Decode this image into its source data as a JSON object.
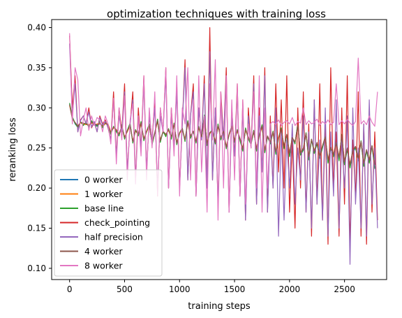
{
  "chart_data": {
    "type": "line",
    "title": "optimization techniques with training loss",
    "xlabel": "training steps",
    "ylabel": "reranking loss",
    "xlim": [
      -163,
      2883
    ],
    "ylim": [
      0.086,
      0.41
    ],
    "xticks": [
      0,
      500,
      1000,
      1500,
      2000,
      2500
    ],
    "yticks": [
      0.1,
      0.15,
      0.2,
      0.25,
      0.3,
      0.35,
      0.4
    ],
    "ytick_labels": [
      "0.10",
      "0.15",
      "0.20",
      "0.25",
      "0.30",
      "0.35",
      "0.40"
    ],
    "grid": false,
    "legend_position": "lower-left",
    "x_step": 25,
    "series": [
      {
        "name": "0 worker",
        "color": "#1f77b4",
        "values": [
          0.305,
          0.288,
          0.28,
          0.276,
          0.282,
          0.279,
          0.281,
          0.277,
          0.283,
          0.28,
          0.278,
          0.282,
          0.276,
          0.281,
          0.279,
          0.268,
          0.276,
          0.271,
          0.266,
          0.278,
          0.262,
          0.271,
          0.28,
          0.257,
          0.272,
          0.266,
          0.282,
          0.26,
          0.27,
          0.279,
          0.255,
          0.268,
          0.285,
          0.258,
          0.27,
          0.265,
          0.273,
          0.262,
          0.28,
          0.255,
          0.268,
          0.274,
          0.259,
          0.283,
          0.263,
          0.27,
          0.257,
          0.276,
          0.262,
          0.29,
          0.254,
          0.268,
          0.272,
          0.256,
          0.279,
          0.261,
          0.27,
          0.25,
          0.266,
          0.277,
          0.258,
          0.272,
          0.26,
          0.247,
          0.274,
          0.262,
          0.255,
          0.271,
          0.247,
          0.265,
          0.278,
          0.245,
          0.264,
          0.256,
          0.27,
          0.243,
          0.262,
          0.274,
          0.25,
          0.266,
          0.24,
          0.262,
          0.256,
          0.28,
          0.242,
          0.248,
          0.268,
          0.236,
          0.26,
          0.244,
          0.255,
          0.238,
          0.25,
          0.264,
          0.232,
          0.249,
          0.24,
          0.256,
          0.235,
          0.266,
          0.23,
          0.248,
          0.226,
          0.244,
          0.25,
          0.235,
          0.258,
          0.228,
          0.246,
          0.232,
          0.252,
          0.225
        ]
      },
      {
        "name": "1 worker",
        "color": "#ff7f0e",
        "values": [
          0.303,
          0.287,
          0.281,
          0.278,
          0.281,
          0.28,
          0.279,
          0.279,
          0.281,
          0.279,
          0.28,
          0.281,
          0.277,
          0.28,
          0.28,
          0.27,
          0.275,
          0.272,
          0.268,
          0.276,
          0.264,
          0.27,
          0.278,
          0.259,
          0.271,
          0.267,
          0.28,
          0.262,
          0.27,
          0.277,
          0.257,
          0.268,
          0.283,
          0.26,
          0.27,
          0.266,
          0.272,
          0.263,
          0.279,
          0.257,
          0.268,
          0.273,
          0.261,
          0.281,
          0.264,
          0.27,
          0.259,
          0.275,
          0.263,
          0.287,
          0.256,
          0.268,
          0.271,
          0.258,
          0.277,
          0.262,
          0.27,
          0.252,
          0.266,
          0.276,
          0.26,
          0.271,
          0.261,
          0.25,
          0.272,
          0.263,
          0.257,
          0.27,
          0.25,
          0.265,
          0.276,
          0.248,
          0.264,
          0.258,
          0.269,
          0.246,
          0.262,
          0.272,
          0.253,
          0.266,
          0.244,
          0.262,
          0.258,
          0.277,
          0.245,
          0.25,
          0.267,
          0.24,
          0.26,
          0.247,
          0.256,
          0.241,
          0.252,
          0.263,
          0.236,
          0.25,
          0.243,
          0.256,
          0.239,
          0.264,
          0.234,
          0.249,
          0.23,
          0.246,
          0.251,
          0.238,
          0.257,
          0.232,
          0.247,
          0.236,
          0.252,
          0.23
        ]
      },
      {
        "name": "base line",
        "color": "#2ca02c",
        "values": [
          0.306,
          0.289,
          0.281,
          0.275,
          0.283,
          0.278,
          0.282,
          0.276,
          0.284,
          0.279,
          0.277,
          0.283,
          0.275,
          0.282,
          0.278,
          0.267,
          0.277,
          0.27,
          0.265,
          0.279,
          0.261,
          0.272,
          0.281,
          0.256,
          0.273,
          0.265,
          0.283,
          0.259,
          0.271,
          0.28,
          0.254,
          0.269,
          0.286,
          0.257,
          0.271,
          0.264,
          0.274,
          0.261,
          0.281,
          0.254,
          0.269,
          0.275,
          0.258,
          0.284,
          0.262,
          0.271,
          0.256,
          0.277,
          0.261,
          0.291,
          0.253,
          0.269,
          0.273,
          0.255,
          0.28,
          0.26,
          0.271,
          0.249,
          0.267,
          0.278,
          0.257,
          0.273,
          0.259,
          0.246,
          0.275,
          0.261,
          0.254,
          0.272,
          0.246,
          0.266,
          0.279,
          0.244,
          0.265,
          0.255,
          0.271,
          0.242,
          0.263,
          0.275,
          0.249,
          0.267,
          0.239,
          0.263,
          0.255,
          0.281,
          0.241,
          0.247,
          0.269,
          0.235,
          0.261,
          0.243,
          0.256,
          0.237,
          0.251,
          0.265,
          0.231,
          0.25,
          0.239,
          0.257,
          0.234,
          0.267,
          0.229,
          0.249,
          0.225,
          0.245,
          0.251,
          0.234,
          0.259,
          0.227,
          0.247,
          0.231,
          0.253,
          0.224
        ]
      },
      {
        "name": "check_pointing",
        "color": "#d62728",
        "values": [
          0.39,
          0.3,
          0.34,
          0.27,
          0.285,
          0.29,
          0.28,
          0.3,
          0.275,
          0.282,
          0.27,
          0.29,
          0.28,
          0.285,
          0.275,
          0.26,
          0.32,
          0.24,
          0.3,
          0.27,
          0.33,
          0.22,
          0.28,
          0.32,
          0.21,
          0.3,
          0.25,
          0.34,
          0.22,
          0.29,
          0.26,
          0.31,
          0.19,
          0.3,
          0.27,
          0.35,
          0.2,
          0.3,
          0.25,
          0.33,
          0.2,
          0.28,
          0.36,
          0.21,
          0.29,
          0.33,
          0.19,
          0.3,
          0.26,
          0.34,
          0.2,
          0.4,
          0.21,
          0.3,
          0.18,
          0.32,
          0.26,
          0.35,
          0.17,
          0.3,
          0.24,
          0.33,
          0.19,
          0.31,
          0.16,
          0.3,
          0.25,
          0.34,
          0.18,
          0.3,
          0.22,
          0.35,
          0.17,
          0.29,
          0.2,
          0.33,
          0.22,
          0.31,
          0.2,
          0.34,
          0.17,
          0.26,
          0.15,
          0.3,
          0.2,
          0.32,
          0.17,
          0.28,
          0.14,
          0.31,
          0.18,
          0.33,
          0.16,
          0.28,
          0.13,
          0.35,
          0.2,
          0.27,
          0.14,
          0.3,
          0.18,
          0.34,
          0.13,
          0.26,
          0.19,
          0.32,
          0.14,
          0.28,
          0.13,
          0.3,
          0.17,
          0.27,
          0.16
        ]
      },
      {
        "name": "half precision",
        "color": "#9467bd",
        "values": [
          0.38,
          0.29,
          0.33,
          0.27,
          0.284,
          0.29,
          0.28,
          0.295,
          0.276,
          0.283,
          0.27,
          0.288,
          0.279,
          0.283,
          0.276,
          0.26,
          0.31,
          0.24,
          0.29,
          0.27,
          0.32,
          0.22,
          0.28,
          0.31,
          0.21,
          0.29,
          0.25,
          0.33,
          0.22,
          0.29,
          0.26,
          0.3,
          0.2,
          0.29,
          0.27,
          0.34,
          0.2,
          0.29,
          0.25,
          0.32,
          0.2,
          0.28,
          0.35,
          0.21,
          0.29,
          0.32,
          0.19,
          0.3,
          0.26,
          0.33,
          0.2,
          0.37,
          0.21,
          0.3,
          0.18,
          0.31,
          0.26,
          0.34,
          0.17,
          0.29,
          0.24,
          0.32,
          0.19,
          0.3,
          0.16,
          0.29,
          0.25,
          0.33,
          0.18,
          0.29,
          0.22,
          0.34,
          0.17,
          0.28,
          0.2,
          0.3,
          0.14,
          0.27,
          0.16,
          0.26,
          0.2,
          0.28,
          0.18,
          0.25,
          0.21,
          0.29,
          0.17,
          0.27,
          0.15,
          0.31,
          0.18,
          0.26,
          0.16,
          0.3,
          0.14,
          0.27,
          0.19,
          0.31,
          0.15,
          0.26,
          0.2,
          0.29,
          0.105,
          0.3,
          0.18,
          0.25,
          0.15,
          0.28,
          0.14,
          0.31,
          0.18,
          0.25,
          0.15
        ]
      },
      {
        "name": "4 worker",
        "color": "#8c564b",
        "values": [
          0.304,
          0.286,
          0.282,
          0.277,
          0.282,
          0.281,
          0.28,
          0.278,
          0.282,
          0.28,
          0.279,
          0.28,
          0.278,
          0.281,
          0.279,
          0.269,
          0.276,
          0.273,
          0.267,
          0.277,
          0.263,
          0.271,
          0.279,
          0.258,
          0.272,
          0.268,
          0.281,
          0.261,
          0.271,
          0.278,
          0.256,
          0.269,
          0.284,
          0.259,
          0.271,
          0.267,
          0.273,
          0.264,
          0.28,
          0.256,
          0.269,
          0.274,
          0.26,
          0.282,
          0.265,
          0.271,
          0.258,
          0.276,
          0.264,
          0.288,
          0.255,
          0.269,
          0.272,
          0.257,
          0.278,
          0.263,
          0.271,
          0.251,
          0.267,
          0.277,
          0.259,
          0.272,
          0.262,
          0.249,
          0.273,
          0.264,
          0.256,
          0.271,
          0.249,
          0.266,
          0.277,
          0.247,
          0.265,
          0.257,
          0.27,
          0.245,
          0.263,
          0.273,
          0.252,
          0.267,
          0.243,
          0.263,
          0.257,
          0.278,
          0.244,
          0.249,
          0.268,
          0.239,
          0.261,
          0.246,
          0.257,
          0.24,
          0.253,
          0.264,
          0.235,
          0.251,
          0.242,
          0.257,
          0.238,
          0.265,
          0.233,
          0.25,
          0.229,
          0.247,
          0.252,
          0.237,
          0.258,
          0.231,
          0.248,
          0.235,
          0.253,
          0.229
        ]
      },
      {
        "name": "8 worker",
        "color": "#e377c2",
        "values": [
          0.393,
          0.28,
          0.35,
          0.335,
          0.265,
          0.285,
          0.3,
          0.272,
          0.29,
          0.278,
          0.288,
          0.285,
          0.27,
          0.29,
          0.28,
          0.255,
          0.312,
          0.23,
          0.3,
          0.26,
          0.315,
          0.21,
          0.285,
          0.305,
          0.205,
          0.29,
          0.24,
          0.34,
          0.21,
          0.3,
          0.25,
          0.32,
          0.19,
          0.3,
          0.27,
          0.35,
          0.2,
          0.3,
          0.24,
          0.34,
          0.19,
          0.3,
          0.28,
          0.35,
          0.21,
          0.31,
          0.19,
          0.34,
          0.22,
          0.29,
          0.17,
          0.33,
          0.26,
          0.36,
          0.16,
          0.32,
          0.2,
          0.34,
          0.17,
          0.31,
          0.21,
          0.33,
          0.19,
          0.31,
          0.18,
          0.28,
          0.25,
          0.32,
          0.2,
          0.34,
          0.17,
          0.3,
          0.2,
          0.28,
          0.283,
          0.279,
          0.285,
          0.278,
          0.282,
          0.284,
          0.28,
          0.288,
          0.278,
          0.283,
          0.281,
          0.3,
          0.279,
          0.284,
          0.28,
          0.282,
          0.286,
          0.278,
          0.283,
          0.28,
          0.285,
          0.279,
          0.282,
          0.33,
          0.279,
          0.284,
          0.28,
          0.286,
          0.281,
          0.278,
          0.283,
          0.362,
          0.28,
          0.284,
          0.279,
          0.29,
          0.282,
          0.277,
          0.32
        ]
      }
    ]
  }
}
